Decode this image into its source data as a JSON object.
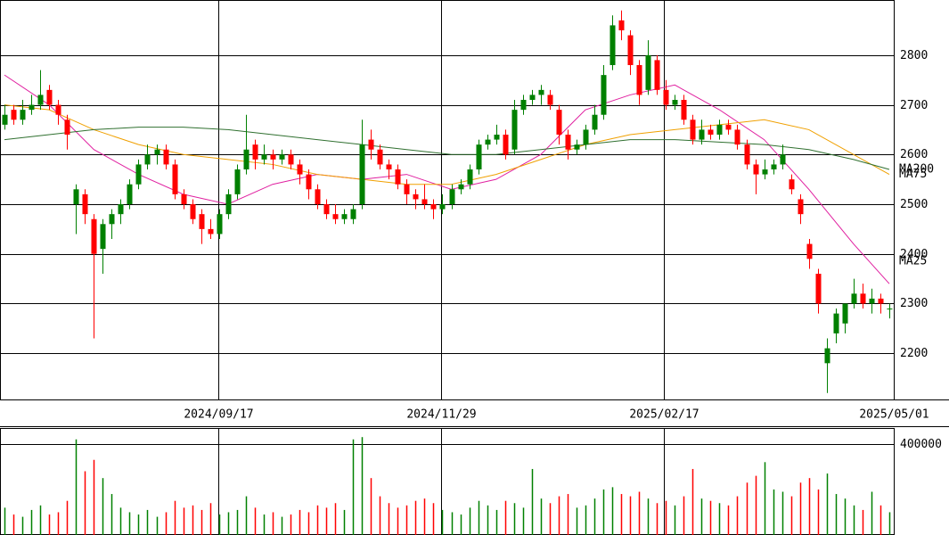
{
  "chart_data": [
    {
      "type": "candlestick",
      "xlim": [
        0,
        100
      ],
      "ylim": [
        2107,
        2911
      ],
      "yticks": [
        2200,
        2300,
        2400,
        2500,
        2600,
        2700,
        2800
      ],
      "xticks": [
        {
          "value": 24.4,
          "label": "2024/09/17"
        },
        {
          "value": 49.35,
          "label": "2024/11/29"
        },
        {
          "value": 74.3,
          "label": "2025/02/17"
        },
        {
          "value": 100,
          "label": "2025/05/01"
        }
      ],
      "up_color": "#008000",
      "down_color": "#ff0000",
      "ohlc": [
        [
          2660,
          2700,
          2650,
          2680
        ],
        [
          2690,
          2700,
          2660,
          2670
        ],
        [
          2670,
          2710,
          2660,
          2690
        ],
        [
          2690,
          2720,
          2680,
          2700
        ],
        [
          2700,
          2770,
          2690,
          2720
        ],
        [
          2730,
          2740,
          2690,
          2700
        ],
        [
          2700,
          2710,
          2660,
          2680
        ],
        [
          2670,
          2680,
          2610,
          2640
        ],
        [
          2500,
          2540,
          2440,
          2530
        ],
        [
          2520,
          2530,
          2460,
          2480
        ],
        [
          2470,
          2480,
          2230,
          2400
        ],
        [
          2410,
          2470,
          2360,
          2460
        ],
        [
          2460,
          2490,
          2430,
          2480
        ],
        [
          2480,
          2510,
          2460,
          2500
        ],
        [
          2500,
          2550,
          2490,
          2540
        ],
        [
          2540,
          2590,
          2530,
          2580
        ],
        [
          2580,
          2620,
          2570,
          2600
        ],
        [
          2600,
          2620,
          2580,
          2610
        ],
        [
          2610,
          2620,
          2570,
          2580
        ],
        [
          2580,
          2590,
          2510,
          2520
        ],
        [
          2520,
          2530,
          2490,
          2500
        ],
        [
          2500,
          2510,
          2460,
          2470
        ],
        [
          2480,
          2490,
          2420,
          2450
        ],
        [
          2450,
          2470,
          2430,
          2440
        ],
        [
          2440,
          2490,
          2430,
          2480
        ],
        [
          2480,
          2530,
          2470,
          2520
        ],
        [
          2520,
          2580,
          2510,
          2570
        ],
        [
          2570,
          2680,
          2560,
          2610
        ],
        [
          2620,
          2630,
          2570,
          2590
        ],
        [
          2590,
          2620,
          2580,
          2600
        ],
        [
          2600,
          2610,
          2570,
          2590
        ],
        [
          2590,
          2610,
          2580,
          2600
        ],
        [
          2600,
          2610,
          2570,
          2580
        ],
        [
          2580,
          2590,
          2540,
          2560
        ],
        [
          2560,
          2570,
          2510,
          2530
        ],
        [
          2530,
          2540,
          2490,
          2500
        ],
        [
          2500,
          2510,
          2470,
          2480
        ],
        [
          2480,
          2500,
          2460,
          2470
        ],
        [
          2470,
          2490,
          2460,
          2480
        ],
        [
          2470,
          2500,
          2460,
          2490
        ],
        [
          2500,
          2670,
          2490,
          2620
        ],
        [
          2630,
          2650,
          2590,
          2610
        ],
        [
          2610,
          2620,
          2570,
          2580
        ],
        [
          2580,
          2590,
          2550,
          2570
        ],
        [
          2570,
          2580,
          2530,
          2540
        ],
        [
          2540,
          2550,
          2500,
          2520
        ],
        [
          2520,
          2530,
          2490,
          2510
        ],
        [
          2510,
          2540,
          2490,
          2500
        ],
        [
          2500,
          2510,
          2470,
          2490
        ],
        [
          2490,
          2520,
          2480,
          2500
        ],
        [
          2500,
          2540,
          2490,
          2530
        ],
        [
          2530,
          2550,
          2520,
          2540
        ],
        [
          2540,
          2580,
          2530,
          2570
        ],
        [
          2570,
          2630,
          2560,
          2620
        ],
        [
          2620,
          2640,
          2610,
          2630
        ],
        [
          2630,
          2660,
          2620,
          2640
        ],
        [
          2640,
          2650,
          2590,
          2600
        ],
        [
          2610,
          2710,
          2600,
          2690
        ],
        [
          2690,
          2720,
          2680,
          2710
        ],
        [
          2710,
          2730,
          2700,
          2720
        ],
        [
          2720,
          2740,
          2700,
          2730
        ],
        [
          2720,
          2730,
          2690,
          2700
        ],
        [
          2690,
          2700,
          2620,
          2640
        ],
        [
          2640,
          2650,
          2590,
          2610
        ],
        [
          2610,
          2630,
          2600,
          2620
        ],
        [
          2620,
          2660,
          2610,
          2650
        ],
        [
          2650,
          2700,
          2640,
          2680
        ],
        [
          2680,
          2780,
          2670,
          2760
        ],
        [
          2780,
          2880,
          2770,
          2860
        ],
        [
          2870,
          2890,
          2830,
          2850
        ],
        [
          2840,
          2850,
          2760,
          2780
        ],
        [
          2780,
          2790,
          2700,
          2720
        ],
        [
          2730,
          2830,
          2720,
          2800
        ],
        [
          2790,
          2800,
          2720,
          2730
        ],
        [
          2730,
          2750,
          2690,
          2700
        ],
        [
          2700,
          2720,
          2690,
          2710
        ],
        [
          2710,
          2720,
          2660,
          2670
        ],
        [
          2670,
          2680,
          2620,
          2630
        ],
        [
          2630,
          2670,
          2620,
          2650
        ],
        [
          2650,
          2660,
          2630,
          2640
        ],
        [
          2640,
          2670,
          2630,
          2660
        ],
        [
          2660,
          2670,
          2640,
          2650
        ],
        [
          2650,
          2660,
          2610,
          2620
        ],
        [
          2620,
          2630,
          2570,
          2580
        ],
        [
          2580,
          2590,
          2520,
          2560
        ],
        [
          2560,
          2590,
          2550,
          2570
        ],
        [
          2570,
          2590,
          2560,
          2580
        ],
        [
          2580,
          2620,
          2570,
          2600
        ],
        [
          2550,
          2560,
          2520,
          2530
        ],
        [
          2510,
          2520,
          2460,
          2480
        ],
        [
          2420,
          2430,
          2370,
          2390
        ],
        [
          2360,
          2370,
          2280,
          2300
        ],
        [
          2180,
          2230,
          2120,
          2210
        ],
        [
          2240,
          2290,
          2220,
          2280
        ],
        [
          2260,
          2300,
          2240,
          2300
        ],
        [
          2300,
          2350,
          2290,
          2320
        ],
        [
          2320,
          2340,
          2290,
          2300
        ],
        [
          2300,
          2330,
          2280,
          2310
        ],
        [
          2310,
          2320,
          2280,
          2300
        ],
        [
          2290,
          2300,
          2270,
          2290
        ]
      ],
      "ma": [
        {
          "name": "MA25",
          "color": "#e020a0",
          "x": [
            0,
            5,
            10,
            15,
            20,
            25,
            30,
            35,
            40,
            45,
            50,
            55,
            60,
            65,
            70,
            75,
            80,
            85,
            90,
            95,
            99
          ],
          "values": [
            2760,
            2700,
            2610,
            2560,
            2520,
            2500,
            2540,
            2560,
            2550,
            2560,
            2530,
            2550,
            2600,
            2690,
            2720,
            2740,
            2690,
            2630,
            2530,
            2420,
            2340
          ]
        },
        {
          "name": "MA75",
          "color": "#f0a000",
          "x": [
            0,
            5,
            10,
            15,
            20,
            25,
            30,
            35,
            40,
            45,
            50,
            55,
            60,
            65,
            70,
            75,
            80,
            85,
            90,
            95,
            99
          ],
          "values": [
            2700,
            2690,
            2650,
            2620,
            2600,
            2590,
            2580,
            2560,
            2550,
            2540,
            2540,
            2560,
            2590,
            2620,
            2640,
            2650,
            2660,
            2670,
            2650,
            2600,
            2560
          ]
        },
        {
          "name": "MA200",
          "color": "#307030",
          "x": [
            0,
            5,
            10,
            15,
            20,
            25,
            30,
            35,
            40,
            45,
            50,
            55,
            60,
            65,
            70,
            75,
            80,
            85,
            90,
            95,
            99
          ],
          "values": [
            2630,
            2640,
            2650,
            2655,
            2655,
            2650,
            2640,
            2630,
            2620,
            2610,
            2600,
            2600,
            2610,
            2620,
            2630,
            2630,
            2625,
            2620,
            2610,
            2590,
            2570
          ]
        }
      ]
    },
    {
      "type": "volume",
      "ylim": [
        0,
        470000
      ],
      "yticks": [
        400000
      ],
      "values": [
        120000,
        90000,
        80000,
        110000,
        130000,
        90000,
        100000,
        150000,
        420000,
        280000,
        330000,
        250000,
        180000,
        120000,
        100000,
        90000,
        110000,
        80000,
        100000,
        150000,
        120000,
        130000,
        110000,
        140000,
        90000,
        100000,
        110000,
        170000,
        120000,
        90000,
        100000,
        80000,
        90000,
        110000,
        100000,
        130000,
        120000,
        140000,
        110000,
        420000,
        430000,
        250000,
        170000,
        140000,
        120000,
        130000,
        150000,
        160000,
        140000,
        110000,
        100000,
        90000,
        120000,
        150000,
        130000,
        110000,
        150000,
        140000,
        120000,
        290000,
        160000,
        140000,
        170000,
        180000,
        120000,
        130000,
        160000,
        200000,
        210000,
        180000,
        170000,
        190000,
        160000,
        140000,
        150000,
        130000,
        170000,
        290000,
        160000,
        150000,
        140000,
        130000,
        170000,
        230000,
        260000,
        320000,
        200000,
        190000,
        170000,
        230000,
        250000,
        200000,
        270000,
        180000,
        160000,
        130000,
        110000,
        190000,
        130000,
        100000
      ]
    }
  ]
}
